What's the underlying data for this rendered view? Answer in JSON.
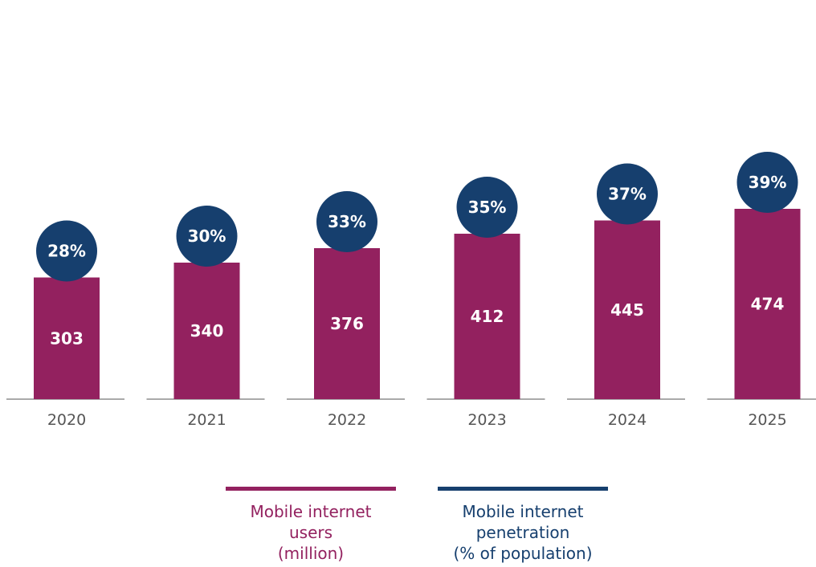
{
  "chart_data": {
    "type": "bar",
    "categories": [
      "2020",
      "2021",
      "2022",
      "2023",
      "2024",
      "2025"
    ],
    "series": [
      {
        "name": "Mobile internet users (million)",
        "values": [
          303,
          340,
          376,
          412,
          445,
          474
        ],
        "labels": [
          "303",
          "340",
          "376",
          "412",
          "445",
          "474"
        ],
        "color": "#93215f"
      },
      {
        "name": "Mobile internet penetration (% of population)",
        "values": [
          28,
          30,
          33,
          35,
          37,
          39
        ],
        "labels": [
          "28%",
          "30%",
          "33%",
          "35%",
          "37%",
          "39%"
        ],
        "color": "#163f6e",
        "marker": "circle"
      }
    ],
    "title": "",
    "xlabel": "",
    "ylabel": "",
    "grid": false,
    "legend_position": "bottom-center"
  },
  "legend": {
    "users": {
      "text": "Mobile internet\nusers\n(million)",
      "color": "#93215f"
    },
    "penetration": {
      "text": "Mobile internet\npenetration\n(% of population)",
      "color": "#163f6e"
    }
  },
  "colors": {
    "axis": "#555555",
    "tick_text": "#555555",
    "label_text": "#ffffff"
  }
}
